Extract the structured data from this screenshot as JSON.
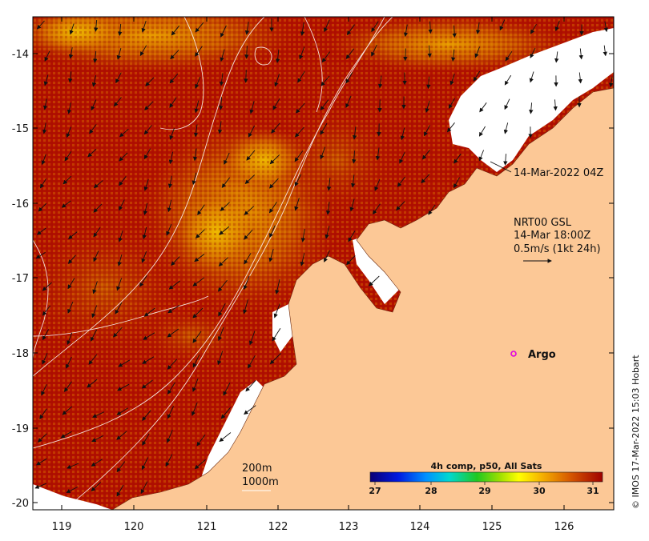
{
  "map": {
    "x_ticks": [
      "119",
      "120",
      "121",
      "122",
      "123",
      "124",
      "125",
      "126"
    ],
    "y_ticks": [
      "-14",
      "-15",
      "-16",
      "-17",
      "-18",
      "-19",
      "-20"
    ],
    "annotations": {
      "swath_time": "14-Mar-2022 04Z",
      "current_title": "NRT00 GSL",
      "current_time": "14-Mar 18:00Z",
      "current_scale": "0.5m/s (1kt 24h)",
      "argo_label": "Argo",
      "depth_200": "200m",
      "depth_1000": "1000m"
    },
    "colorbar": {
      "title": "4h comp, p50, All Sats",
      "ticks": [
        "27",
        "28",
        "29",
        "30",
        "31"
      ],
      "range": [
        26.7,
        31.2
      ]
    },
    "credit": "© IMOS 17-Mar-2022 15:03 Hobart",
    "colors": {
      "land": "#fcc896",
      "ocean_warm": "#b21000",
      "argo_marker": "#e000e0"
    },
    "features": {
      "argo_float": {
        "lon": 125.3,
        "lat": -18.0
      }
    },
    "icons": [
      "argo-marker-icon",
      "current-arrow-icon"
    ]
  }
}
